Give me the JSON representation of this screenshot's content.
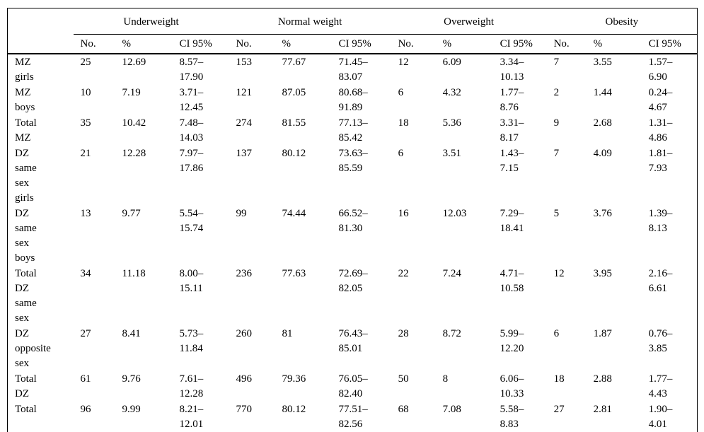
{
  "table": {
    "colors": {
      "text": "#000000",
      "background": "#ffffff",
      "rule": "#000000"
    },
    "column_groups": [
      {
        "label": "Underweight"
      },
      {
        "label": "Normal weight"
      },
      {
        "label": "Overweight"
      },
      {
        "label": "Obesity"
      }
    ],
    "sub_columns": [
      "No.",
      "%",
      "CI 95%"
    ],
    "rows": [
      {
        "label": "MZ girls",
        "underweight": {
          "no": "25",
          "pct": "12.69",
          "ci": "8.57–17.90"
        },
        "normal_weight": {
          "no": "153",
          "pct": "77.67",
          "ci": "71.45–83.07"
        },
        "overweight": {
          "no": "12",
          "pct": "6.09",
          "ci": "3.34–10.13"
        },
        "obesity": {
          "no": "7",
          "pct": "3.55",
          "ci": "1.57–6.90"
        }
      },
      {
        "label": "MZ boys",
        "underweight": {
          "no": "10",
          "pct": "7.19",
          "ci": "3.71–12.45"
        },
        "normal_weight": {
          "no": "121",
          "pct": "87.05",
          "ci": "80.68–91.89"
        },
        "overweight": {
          "no": "6",
          "pct": "4.32",
          "ci": "1.77–8.76"
        },
        "obesity": {
          "no": "2",
          "pct": "1.44",
          "ci": "0.24–4.67"
        }
      },
      {
        "label": "Total MZ",
        "underweight": {
          "no": "35",
          "pct": "10.42",
          "ci": "7.48–14.03"
        },
        "normal_weight": {
          "no": "274",
          "pct": "81.55",
          "ci": "77.13–85.42"
        },
        "overweight": {
          "no": "18",
          "pct": "5.36",
          "ci": "3.31–8.17"
        },
        "obesity": {
          "no": "9",
          "pct": "2.68",
          "ci": "1.31–4.86"
        }
      },
      {
        "label": "DZ same sex girls",
        "underweight": {
          "no": "21",
          "pct": "12.28",
          "ci": "7.97–17.86"
        },
        "normal_weight": {
          "no": "137",
          "pct": "80.12",
          "ci": "73.63–85.59"
        },
        "overweight": {
          "no": "6",
          "pct": "3.51",
          "ci": "1.43–7.15"
        },
        "obesity": {
          "no": "7",
          "pct": "4.09",
          "ci": "1.81–7.93"
        }
      },
      {
        "label": "DZ same sex boys",
        "underweight": {
          "no": "13",
          "pct": "9.77",
          "ci": "5.54–15.74"
        },
        "normal_weight": {
          "no": "99",
          "pct": "74.44",
          "ci": "66.52–81.30"
        },
        "overweight": {
          "no": "16",
          "pct": "12.03",
          "ci": "7.29–18.41"
        },
        "obesity": {
          "no": "5",
          "pct": "3.76",
          "ci": "1.39–8.13"
        }
      },
      {
        "label": "Total DZ same sex",
        "underweight": {
          "no": "34",
          "pct": "11.18",
          "ci": "8.00–15.11"
        },
        "normal_weight": {
          "no": "236",
          "pct": "77.63",
          "ci": "72.69–82.05"
        },
        "overweight": {
          "no": "22",
          "pct": "7.24",
          "ci": "4.71–10.58"
        },
        "obesity": {
          "no": "12",
          "pct": "3.95",
          "ci": "2.16–6.61"
        }
      },
      {
        "label": "DZ opposite sex",
        "underweight": {
          "no": "27",
          "pct": "8.41",
          "ci": "5.73–11.84"
        },
        "normal_weight": {
          "no": "260",
          "pct": "81",
          "ci": "76.43–85.01"
        },
        "overweight": {
          "no": "28",
          "pct": "8.72",
          "ci": "5.99–12.20"
        },
        "obesity": {
          "no": "6",
          "pct": "1.87",
          "ci": "0.76–3.85"
        }
      },
      {
        "label": "Total DZ",
        "underweight": {
          "no": "61",
          "pct": "9.76",
          "ci": "7.61–12.28"
        },
        "normal_weight": {
          "no": "496",
          "pct": "79.36",
          "ci": "76.05–82.40"
        },
        "overweight": {
          "no": "50",
          "pct": "8",
          "ci": "6.06–10.33"
        },
        "obesity": {
          "no": "18",
          "pct": "2.88",
          "ci": "1.77–4.43"
        }
      },
      {
        "label": "Total",
        "underweight": {
          "no": "96",
          "pct": "9.99",
          "ci": "8.21–12.01"
        },
        "normal_weight": {
          "no": "770",
          "pct": "80.12",
          "ci": "77.51–82.56"
        },
        "overweight": {
          "no": "68",
          "pct": "7.08",
          "ci": "5.58–8.83"
        },
        "obesity": {
          "no": "27",
          "pct": "2.81",
          "ci": "1.90–4.01"
        }
      }
    ]
  }
}
